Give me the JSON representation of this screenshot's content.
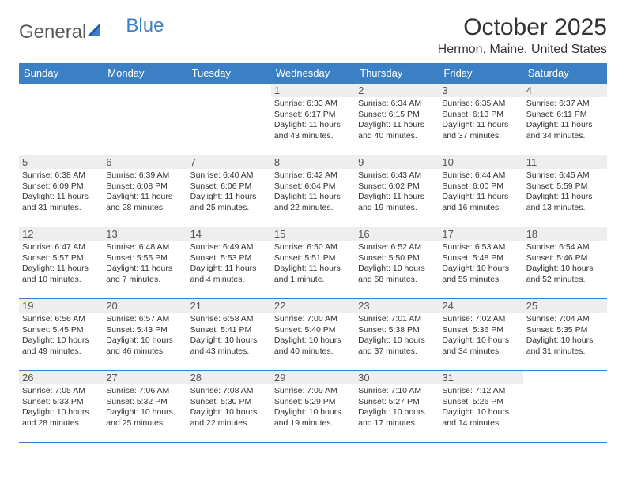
{
  "brand": {
    "part1": "General",
    "part2": "Blue"
  },
  "title": "October 2025",
  "location": "Hermon, Maine, United States",
  "colors": {
    "header_bg": "#3b7fc4",
    "header_text": "#ffffff",
    "border": "#3b7fc4",
    "daynum_bg": "#eeeeee",
    "text": "#333333"
  },
  "day_headers": [
    "Sunday",
    "Monday",
    "Tuesday",
    "Wednesday",
    "Thursday",
    "Friday",
    "Saturday"
  ],
  "weeks": [
    [
      {
        "day": "",
        "sunrise": "",
        "sunset": "",
        "daylight": ""
      },
      {
        "day": "",
        "sunrise": "",
        "sunset": "",
        "daylight": ""
      },
      {
        "day": "",
        "sunrise": "",
        "sunset": "",
        "daylight": ""
      },
      {
        "day": "1",
        "sunrise": "Sunrise: 6:33 AM",
        "sunset": "Sunset: 6:17 PM",
        "daylight": "Daylight: 11 hours and 43 minutes."
      },
      {
        "day": "2",
        "sunrise": "Sunrise: 6:34 AM",
        "sunset": "Sunset: 6:15 PM",
        "daylight": "Daylight: 11 hours and 40 minutes."
      },
      {
        "day": "3",
        "sunrise": "Sunrise: 6:35 AM",
        "sunset": "Sunset: 6:13 PM",
        "daylight": "Daylight: 11 hours and 37 minutes."
      },
      {
        "day": "4",
        "sunrise": "Sunrise: 6:37 AM",
        "sunset": "Sunset: 6:11 PM",
        "daylight": "Daylight: 11 hours and 34 minutes."
      }
    ],
    [
      {
        "day": "5",
        "sunrise": "Sunrise: 6:38 AM",
        "sunset": "Sunset: 6:09 PM",
        "daylight": "Daylight: 11 hours and 31 minutes."
      },
      {
        "day": "6",
        "sunrise": "Sunrise: 6:39 AM",
        "sunset": "Sunset: 6:08 PM",
        "daylight": "Daylight: 11 hours and 28 minutes."
      },
      {
        "day": "7",
        "sunrise": "Sunrise: 6:40 AM",
        "sunset": "Sunset: 6:06 PM",
        "daylight": "Daylight: 11 hours and 25 minutes."
      },
      {
        "day": "8",
        "sunrise": "Sunrise: 6:42 AM",
        "sunset": "Sunset: 6:04 PM",
        "daylight": "Daylight: 11 hours and 22 minutes."
      },
      {
        "day": "9",
        "sunrise": "Sunrise: 6:43 AM",
        "sunset": "Sunset: 6:02 PM",
        "daylight": "Daylight: 11 hours and 19 minutes."
      },
      {
        "day": "10",
        "sunrise": "Sunrise: 6:44 AM",
        "sunset": "Sunset: 6:00 PM",
        "daylight": "Daylight: 11 hours and 16 minutes."
      },
      {
        "day": "11",
        "sunrise": "Sunrise: 6:45 AM",
        "sunset": "Sunset: 5:59 PM",
        "daylight": "Daylight: 11 hours and 13 minutes."
      }
    ],
    [
      {
        "day": "12",
        "sunrise": "Sunrise: 6:47 AM",
        "sunset": "Sunset: 5:57 PM",
        "daylight": "Daylight: 11 hours and 10 minutes."
      },
      {
        "day": "13",
        "sunrise": "Sunrise: 6:48 AM",
        "sunset": "Sunset: 5:55 PM",
        "daylight": "Daylight: 11 hours and 7 minutes."
      },
      {
        "day": "14",
        "sunrise": "Sunrise: 6:49 AM",
        "sunset": "Sunset: 5:53 PM",
        "daylight": "Daylight: 11 hours and 4 minutes."
      },
      {
        "day": "15",
        "sunrise": "Sunrise: 6:50 AM",
        "sunset": "Sunset: 5:51 PM",
        "daylight": "Daylight: 11 hours and 1 minute."
      },
      {
        "day": "16",
        "sunrise": "Sunrise: 6:52 AM",
        "sunset": "Sunset: 5:50 PM",
        "daylight": "Daylight: 10 hours and 58 minutes."
      },
      {
        "day": "17",
        "sunrise": "Sunrise: 6:53 AM",
        "sunset": "Sunset: 5:48 PM",
        "daylight": "Daylight: 10 hours and 55 minutes."
      },
      {
        "day": "18",
        "sunrise": "Sunrise: 6:54 AM",
        "sunset": "Sunset: 5:46 PM",
        "daylight": "Daylight: 10 hours and 52 minutes."
      }
    ],
    [
      {
        "day": "19",
        "sunrise": "Sunrise: 6:56 AM",
        "sunset": "Sunset: 5:45 PM",
        "daylight": "Daylight: 10 hours and 49 minutes."
      },
      {
        "day": "20",
        "sunrise": "Sunrise: 6:57 AM",
        "sunset": "Sunset: 5:43 PM",
        "daylight": "Daylight: 10 hours and 46 minutes."
      },
      {
        "day": "21",
        "sunrise": "Sunrise: 6:58 AM",
        "sunset": "Sunset: 5:41 PM",
        "daylight": "Daylight: 10 hours and 43 minutes."
      },
      {
        "day": "22",
        "sunrise": "Sunrise: 7:00 AM",
        "sunset": "Sunset: 5:40 PM",
        "daylight": "Daylight: 10 hours and 40 minutes."
      },
      {
        "day": "23",
        "sunrise": "Sunrise: 7:01 AM",
        "sunset": "Sunset: 5:38 PM",
        "daylight": "Daylight: 10 hours and 37 minutes."
      },
      {
        "day": "24",
        "sunrise": "Sunrise: 7:02 AM",
        "sunset": "Sunset: 5:36 PM",
        "daylight": "Daylight: 10 hours and 34 minutes."
      },
      {
        "day": "25",
        "sunrise": "Sunrise: 7:04 AM",
        "sunset": "Sunset: 5:35 PM",
        "daylight": "Daylight: 10 hours and 31 minutes."
      }
    ],
    [
      {
        "day": "26",
        "sunrise": "Sunrise: 7:05 AM",
        "sunset": "Sunset: 5:33 PM",
        "daylight": "Daylight: 10 hours and 28 minutes."
      },
      {
        "day": "27",
        "sunrise": "Sunrise: 7:06 AM",
        "sunset": "Sunset: 5:32 PM",
        "daylight": "Daylight: 10 hours and 25 minutes."
      },
      {
        "day": "28",
        "sunrise": "Sunrise: 7:08 AM",
        "sunset": "Sunset: 5:30 PM",
        "daylight": "Daylight: 10 hours and 22 minutes."
      },
      {
        "day": "29",
        "sunrise": "Sunrise: 7:09 AM",
        "sunset": "Sunset: 5:29 PM",
        "daylight": "Daylight: 10 hours and 19 minutes."
      },
      {
        "day": "30",
        "sunrise": "Sunrise: 7:10 AM",
        "sunset": "Sunset: 5:27 PM",
        "daylight": "Daylight: 10 hours and 17 minutes."
      },
      {
        "day": "31",
        "sunrise": "Sunrise: 7:12 AM",
        "sunset": "Sunset: 5:26 PM",
        "daylight": "Daylight: 10 hours and 14 minutes."
      },
      {
        "day": "",
        "sunrise": "",
        "sunset": "",
        "daylight": ""
      }
    ]
  ]
}
